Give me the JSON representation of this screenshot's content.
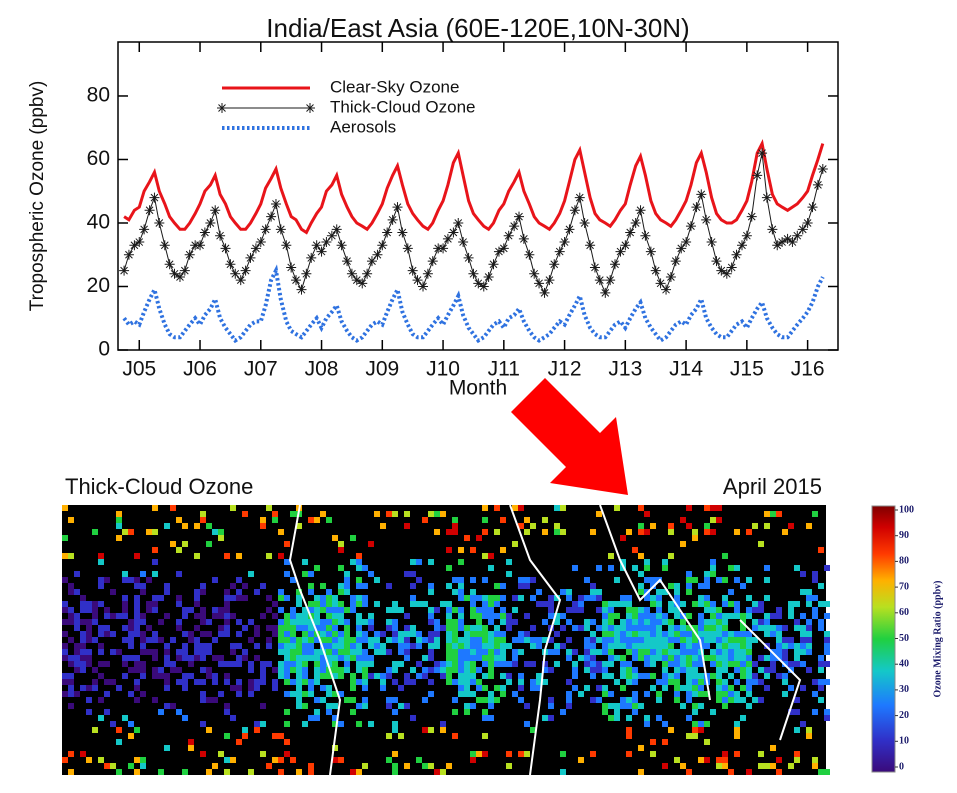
{
  "chart_data": {
    "type": "line",
    "title": "India/East Asia (60E-120E,10N-30N)",
    "xlabel": "Month",
    "ylabel": "Tropospheric Ozone (ppbv)",
    "legend": "upper left",
    "xlim": [
      2004.65,
      2016.5
    ],
    "ylim": [
      0,
      97
    ],
    "yticks": [
      0,
      20,
      40,
      60,
      80
    ],
    "xticks": [
      {
        "value": 2005,
        "label": "J05"
      },
      {
        "value": 2006,
        "label": "J06"
      },
      {
        "value": 2007,
        "label": "J07"
      },
      {
        "value": 2008,
        "label": "J08"
      },
      {
        "value": 2009,
        "label": "J09"
      },
      {
        "value": 2010,
        "label": "J10"
      },
      {
        "value": 2011,
        "label": "J11"
      },
      {
        "value": 2012,
        "label": "J12"
      },
      {
        "value": 2013,
        "label": "J13"
      },
      {
        "value": 2014,
        "label": "J14"
      },
      {
        "value": 2015,
        "label": "J15"
      },
      {
        "value": 2016,
        "label": "J16"
      }
    ],
    "x": [
      2004.75,
      2004.83,
      2004.92,
      2005.0,
      2005.08,
      2005.17,
      2005.25,
      2005.33,
      2005.42,
      2005.5,
      2005.58,
      2005.67,
      2005.75,
      2005.83,
      2005.92,
      2006.0,
      2006.08,
      2006.17,
      2006.25,
      2006.33,
      2006.42,
      2006.5,
      2006.58,
      2006.67,
      2006.75,
      2006.83,
      2006.92,
      2007.0,
      2007.08,
      2007.17,
      2007.25,
      2007.33,
      2007.42,
      2007.5,
      2007.58,
      2007.67,
      2007.75,
      2007.83,
      2007.92,
      2008.0,
      2008.08,
      2008.17,
      2008.25,
      2008.33,
      2008.42,
      2008.5,
      2008.58,
      2008.67,
      2008.75,
      2008.83,
      2008.92,
      2009.0,
      2009.08,
      2009.17,
      2009.25,
      2009.33,
      2009.42,
      2009.5,
      2009.58,
      2009.67,
      2009.75,
      2009.83,
      2009.92,
      2010.0,
      2010.08,
      2010.17,
      2010.25,
      2010.33,
      2010.42,
      2010.5,
      2010.58,
      2010.67,
      2010.75,
      2010.83,
      2010.92,
      2011.0,
      2011.08,
      2011.17,
      2011.25,
      2011.33,
      2011.42,
      2011.5,
      2011.58,
      2011.67,
      2011.75,
      2011.83,
      2011.92,
      2012.0,
      2012.08,
      2012.17,
      2012.25,
      2012.33,
      2012.42,
      2012.5,
      2012.58,
      2012.67,
      2012.75,
      2012.83,
      2012.92,
      2013.0,
      2013.08,
      2013.17,
      2013.25,
      2013.33,
      2013.42,
      2013.5,
      2013.58,
      2013.67,
      2013.75,
      2013.83,
      2013.92,
      2014.0,
      2014.08,
      2014.17,
      2014.25,
      2014.33,
      2014.42,
      2014.5,
      2014.58,
      2014.67,
      2014.75,
      2014.83,
      2014.92,
      2015.0,
      2015.08,
      2015.17,
      2015.25,
      2015.33,
      2015.42,
      2015.5,
      2015.58,
      2015.67,
      2015.75,
      2015.83,
      2015.92,
      2016.0,
      2016.08,
      2016.17,
      2016.25
    ],
    "series": [
      {
        "name": "Clear-Sky Ozone",
        "color": "#e8141a",
        "marker": "none",
        "dash": "solid",
        "values": [
          42,
          41,
          44,
          45,
          50,
          53,
          56,
          50,
          46,
          42,
          40,
          38,
          38,
          40,
          43,
          46,
          50,
          52,
          55,
          49,
          46,
          42,
          40,
          38,
          38,
          40,
          43,
          46,
          51,
          54,
          57,
          51,
          46,
          42,
          41,
          38,
          37,
          40,
          43,
          45,
          50,
          52,
          55,
          49,
          45,
          42,
          40,
          39,
          38,
          40,
          43,
          46,
          51,
          55,
          58,
          52,
          46,
          43,
          41,
          39,
          38,
          40,
          44,
          47,
          52,
          59,
          62,
          55,
          47,
          43,
          41,
          39,
          38,
          40,
          44,
          46,
          50,
          53,
          56,
          50,
          46,
          42,
          40,
          39,
          38,
          40,
          43,
          47,
          53,
          60,
          63,
          56,
          48,
          43,
          41,
          40,
          39,
          41,
          44,
          46,
          52,
          58,
          61,
          55,
          47,
          43,
          41,
          40,
          39,
          41,
          44,
          47,
          52,
          59,
          62,
          56,
          48,
          43,
          41,
          40,
          40,
          41,
          44,
          47,
          53,
          62,
          65,
          57,
          49,
          46,
          45,
          44,
          45,
          46,
          48,
          50,
          55,
          60,
          65
        ]
      },
      {
        "name": "Thick-Cloud Ozone",
        "color": "#1a1a1a",
        "marker": "asterisk",
        "dash": "solid",
        "values": [
          25,
          30,
          33,
          34,
          38,
          44,
          48,
          40,
          33,
          27,
          24,
          23,
          25,
          30,
          33,
          33,
          37,
          40,
          44,
          36,
          32,
          27,
          24,
          22,
          25,
          29,
          32,
          34,
          38,
          42,
          46,
          38,
          33,
          26,
          22,
          19,
          24,
          29,
          33,
          31,
          34,
          36,
          38,
          33,
          28,
          24,
          22,
          21,
          24,
          28,
          30,
          33,
          37,
          41,
          45,
          37,
          32,
          25,
          22,
          20,
          24,
          28,
          32,
          32,
          35,
          37,
          40,
          34,
          29,
          24,
          21,
          20,
          23,
          27,
          31,
          32,
          36,
          39,
          42,
          35,
          30,
          24,
          21,
          18,
          22,
          27,
          31,
          34,
          38,
          44,
          48,
          40,
          33,
          26,
          22,
          18,
          22,
          27,
          31,
          33,
          37,
          40,
          44,
          36,
          31,
          25,
          21,
          19,
          23,
          28,
          32,
          34,
          39,
          45,
          49,
          41,
          34,
          28,
          25,
          24,
          26,
          30,
          33,
          36,
          42,
          55,
          62,
          48,
          38,
          33,
          34,
          35,
          34,
          36,
          38,
          40,
          45,
          52,
          57
        ]
      },
      {
        "name": "Aerosols",
        "color": "#2f72e0",
        "marker": "none",
        "dash": "dotted",
        "values": [
          10,
          8,
          9,
          8,
          12,
          16,
          19,
          13,
          8,
          5,
          4,
          4,
          6,
          8,
          10,
          8,
          11,
          13,
          16,
          10,
          7,
          5,
          3,
          4,
          6,
          8,
          9,
          9,
          14,
          22,
          25,
          16,
          9,
          6,
          5,
          4,
          6,
          8,
          10,
          7,
          10,
          12,
          14,
          9,
          6,
          4,
          3,
          4,
          6,
          8,
          9,
          8,
          12,
          16,
          19,
          12,
          8,
          5,
          4,
          4,
          6,
          8,
          10,
          8,
          11,
          14,
          17,
          11,
          7,
          5,
          3,
          4,
          6,
          8,
          9,
          7,
          10,
          11,
          13,
          9,
          6,
          4,
          3,
          4,
          5,
          7,
          9,
          8,
          11,
          14,
          17,
          11,
          7,
          5,
          4,
          4,
          6,
          8,
          9,
          7,
          10,
          13,
          15,
          10,
          7,
          5,
          3,
          4,
          6,
          8,
          9,
          8,
          11,
          13,
          16,
          10,
          7,
          5,
          4,
          4,
          6,
          8,
          9,
          7,
          10,
          13,
          15,
          10,
          7,
          5,
          4,
          4,
          6,
          8,
          10,
          12,
          15,
          20,
          23
        ]
      }
    ]
  },
  "map": {
    "title": "Thick-Cloud Ozone",
    "date": "April 2015",
    "colorbar_label": "Ozone Mixing Ratio (ppbv)",
    "colorbar_lim": [
      0,
      100
    ],
    "colorbar_ticks": [
      0,
      10,
      20,
      30,
      40,
      50,
      60,
      70,
      80,
      90,
      100
    ]
  }
}
